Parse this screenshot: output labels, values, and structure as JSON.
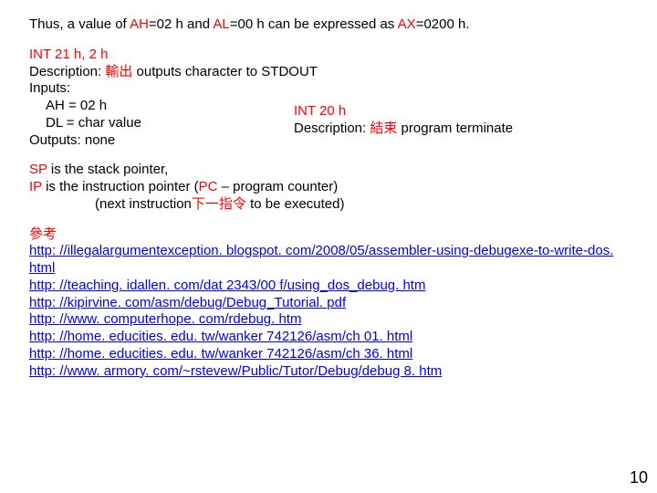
{
  "intro": {
    "prefix": "Thus, a value of ",
    "ah": "AH",
    "eq1": "=02 h and ",
    "al": "AL",
    "eq2": "=00 h can be expressed as ",
    "ax": "AX",
    "eq3": "=0200 h."
  },
  "int21": {
    "title": "INT 21 h, 2 h",
    "desc_label": "Description: ",
    "desc_cjk": "輸出",
    "desc_text": " outputs character to STDOUT",
    "inputs_label": "Inputs:",
    "ah_line": "AH = 02 h",
    "dl_line": "DL = char value",
    "outputs": "Outputs:   none"
  },
  "int20": {
    "title": "INT 20 h",
    "desc_label": "Description: ",
    "desc_cjk": "結束",
    "desc_text": " program terminate"
  },
  "pointers": {
    "sp": "SP",
    "sp_text": " is the stack pointer,",
    "ip": "IP",
    "ip_text": " is the instruction pointer (",
    "pc": "PC",
    "pc_text": " – program counter)",
    "next1": "(next instruction",
    "next_cjk": "下一指令",
    "next2": " to be executed)"
  },
  "refs": {
    "label": "參考",
    "links": [
      "http: //illegalargumentexception. blogspot. com/2008/05/assembler-using-debugexe-to-write-dos. html",
      "http: //teaching. idallen. com/dat 2343/00 f/using_dos_debug. htm",
      "http: //kipirvine. com/asm/debug/Debug_Tutorial. pdf",
      "http: //www. computerhope. com/rdebug. htm",
      "http: //home. educities. edu. tw/wanker 742126/asm/ch 01. html",
      "http: //home. educities. edu. tw/wanker 742126/asm/ch 36. html",
      "http: //www. armory. com/~rstevew/Public/Tutor/Debug/debug 8. htm"
    ]
  },
  "page_number": "10"
}
